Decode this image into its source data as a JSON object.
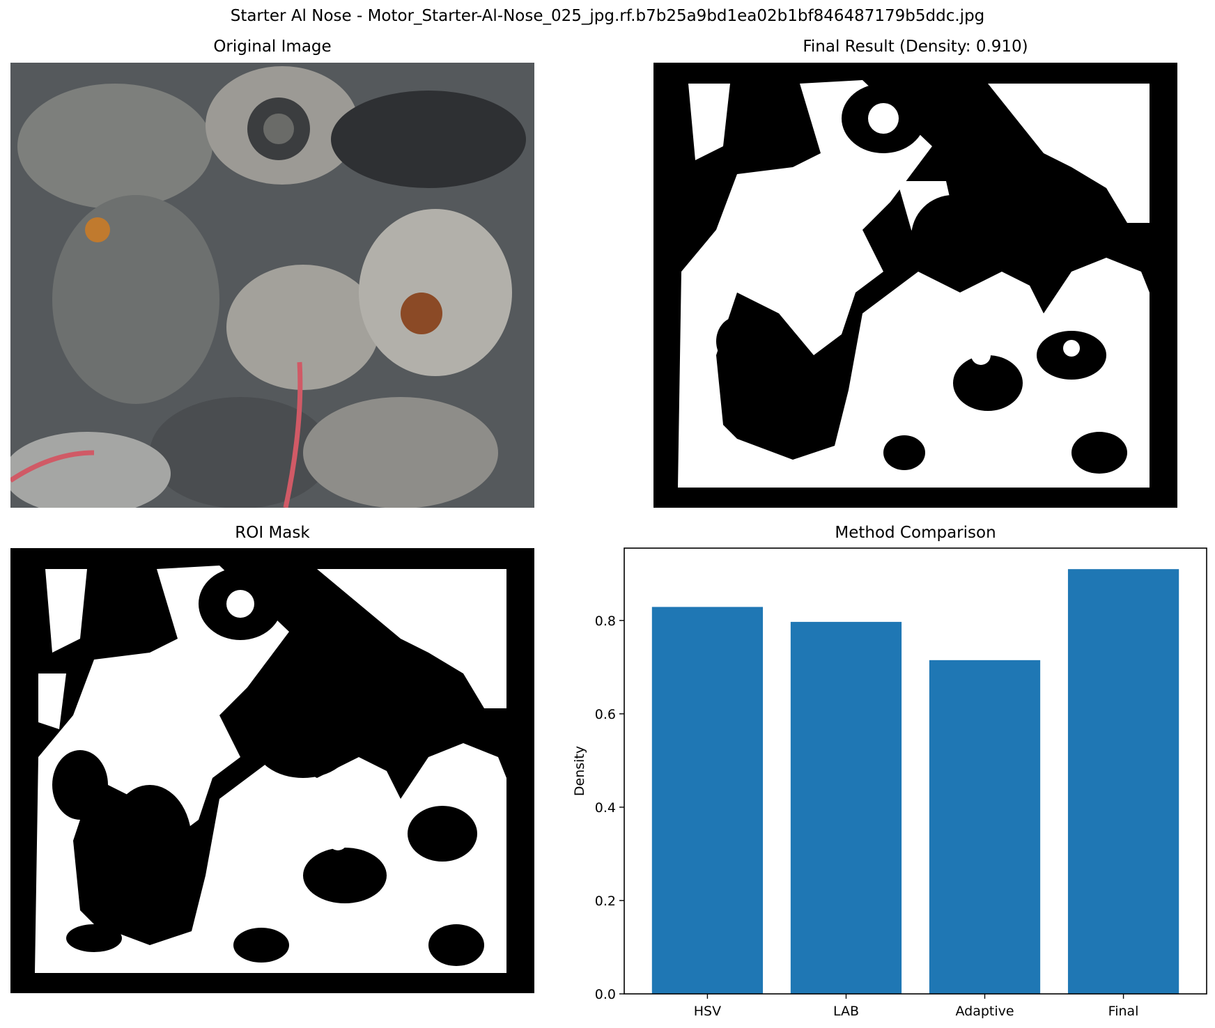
{
  "figure_title": "Starter Al Nose - Motor_Starter-Al-Nose_025_jpg.rf.b7b25a9bd1ea02b1bf846487179b5ddc.jpg",
  "panels": {
    "original": {
      "title": "Original Image"
    },
    "final": {
      "title": "Final Result (Density: 0.910)"
    },
    "roi": {
      "title": "ROI Mask"
    },
    "comparison": {
      "title": "Method Comparison"
    }
  },
  "colors": {
    "bar": "#1f77b4",
    "mask_fg": "#ffffff",
    "mask_bg": "#000000"
  },
  "chart_data": {
    "type": "bar",
    "title": "Method Comparison",
    "categories": [
      "HSV",
      "LAB",
      "Adaptive",
      "Final"
    ],
    "values": [
      0.829,
      0.797,
      0.715,
      0.91
    ],
    "xlabel": "",
    "ylabel": "Density",
    "ylim": [
      0,
      0.955
    ],
    "yticks": [
      0.0,
      0.2,
      0.4,
      0.6,
      0.8
    ],
    "ytick_labels": [
      "0.0",
      "0.2",
      "0.4",
      "0.6",
      "0.8"
    ],
    "grid": false
  }
}
